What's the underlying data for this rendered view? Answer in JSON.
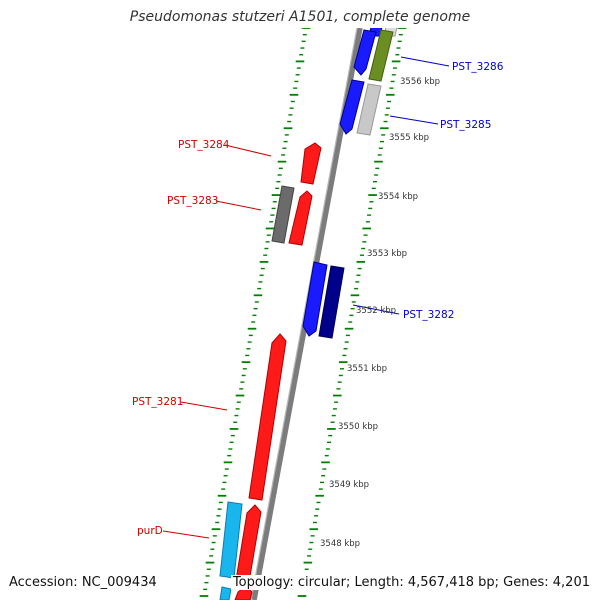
{
  "title": "Pseudomonas stutzeri A1501, complete genome",
  "accession_text": "Accession: NC_009434",
  "topology_text": "Topology: circular; Length: 4,567,418 bp; Genes: 4,201",
  "scale": {
    "unit_suffix": "kbp",
    "labels": [
      "3556 kbp",
      "3555 kbp",
      "3554 kbp",
      "3553 kbp",
      "3552 kbp",
      "3551 kbp",
      "3550 kbp",
      "3549 kbp",
      "3548 kbp"
    ]
  },
  "genes": [
    {
      "name": "PST_3286",
      "strand": "+",
      "color": "#0000cc"
    },
    {
      "name": "PST_3285",
      "strand": "+",
      "color": "#0000cc"
    },
    {
      "name": "PST_3284",
      "strand": "-",
      "color": "#cc0000"
    },
    {
      "name": "PST_3283",
      "strand": "-",
      "color": "#cc0000"
    },
    {
      "name": "PST_3282",
      "strand": "+",
      "color": "#0000cc"
    },
    {
      "name": "PST_3281",
      "strand": "-",
      "color": "#cc0000"
    },
    {
      "name": "purD",
      "strand": "-",
      "color": "#cc0000"
    }
  ],
  "colors": {
    "forward_cds": "#1a1aff",
    "reverse_cds": "#ff1a1a",
    "forward_dark": "#00008b",
    "gray_feature": "#6b6b6b",
    "light_gray_feature": "#c8c8c8",
    "green_feature": "#6b8e23",
    "cyan_feature": "#19b6ee",
    "backbone": "#8a8a8a",
    "tick_green": "#008000"
  }
}
